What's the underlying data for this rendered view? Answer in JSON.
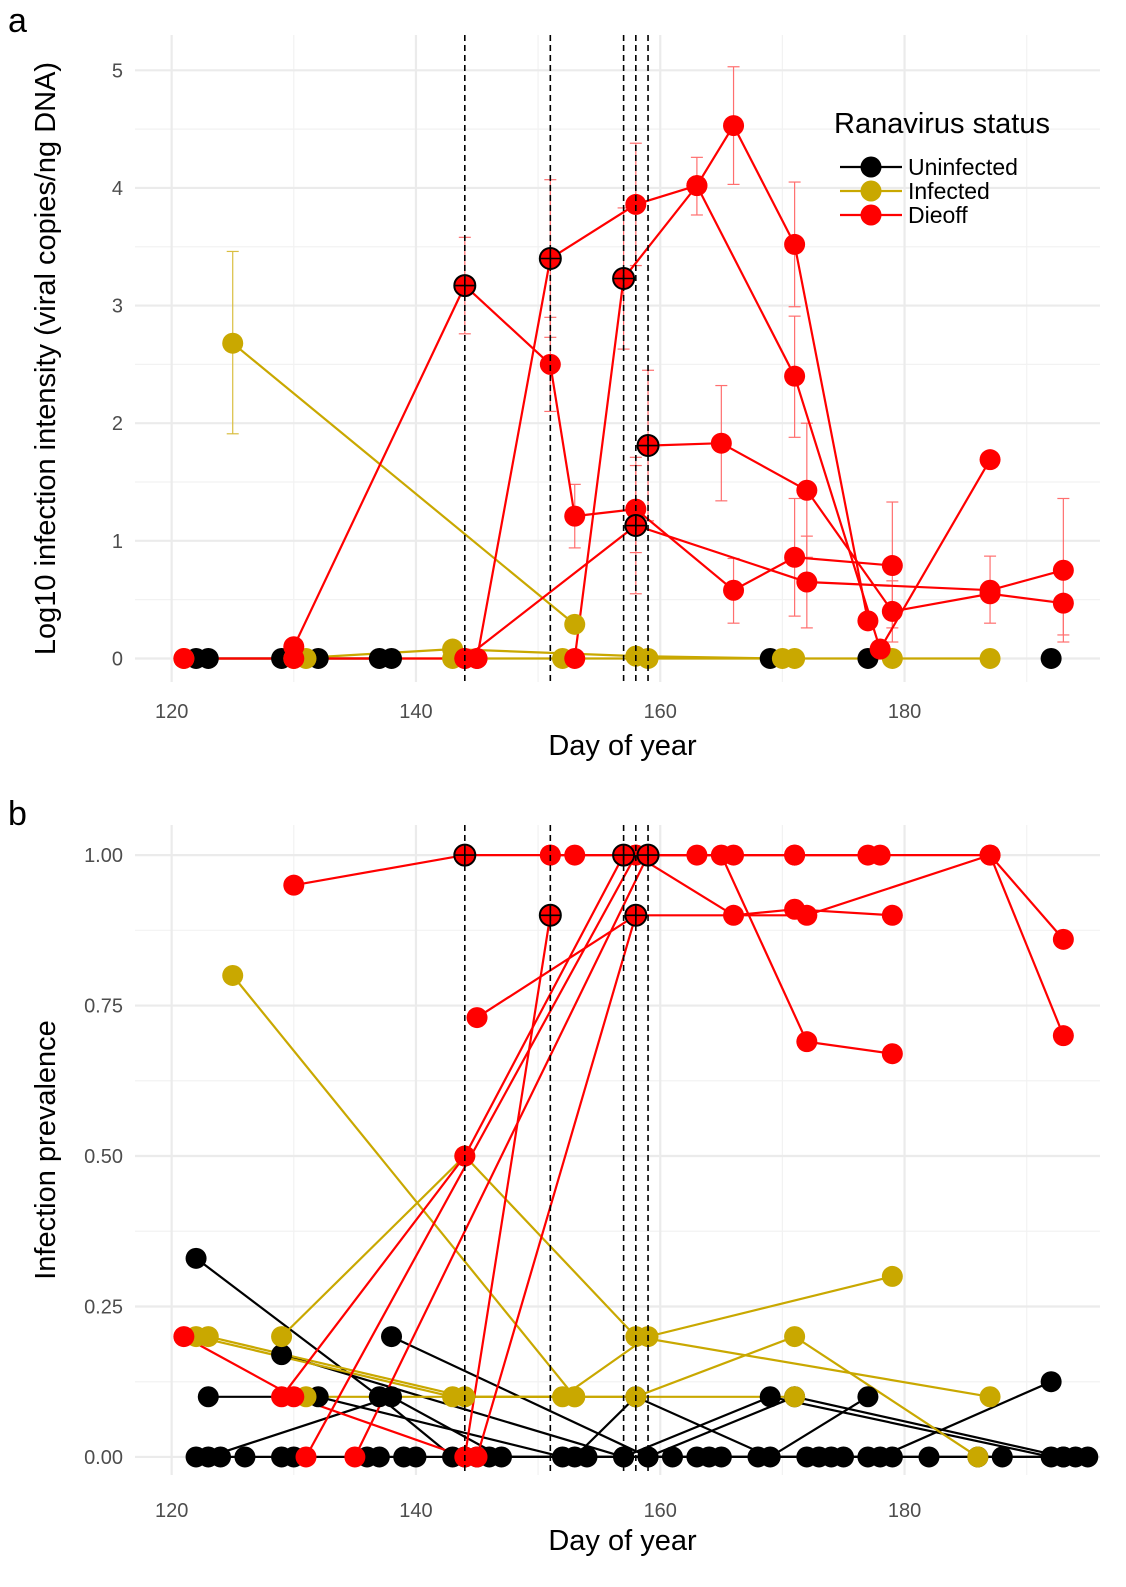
{
  "colors": {
    "uninfected": "#000000",
    "infected": "#c9a800",
    "dieoff": "#ff0000",
    "grid": "#ebebeb",
    "errorbar": "#ff6f6f"
  },
  "legend": {
    "title": "Ranavirus status",
    "items": [
      {
        "label": "Uninfected",
        "color": "#000000"
      },
      {
        "label": "Infected",
        "color": "#c9a800"
      },
      {
        "label": "Dieoff",
        "color": "#ff0000"
      }
    ]
  },
  "chart_data": [
    {
      "panel": "a",
      "type": "line",
      "xlabel": "Day of year",
      "ylabel": "Log10 infection intensity (viral copies/ng DNA)",
      "xlim": [
        117,
        196
      ],
      "ylim": [
        -0.2,
        5.3
      ],
      "xticks": [
        120,
        140,
        160,
        180
      ],
      "yticks": [
        0,
        1,
        2,
        3,
        4,
        5
      ],
      "ytick_labels": [
        "0",
        "1",
        "2",
        "3",
        "4",
        "5"
      ],
      "dieoff_days": [
        144,
        151,
        157,
        158,
        159
      ],
      "series": [
        {
          "status": "dieoff",
          "points": [
            [
              130,
              0.1
            ],
            [
              144,
              3.17
            ],
            [
              151,
              2.5
            ],
            [
              153,
              1.21
            ],
            [
              158,
              1.27
            ],
            [
              166,
              0.58
            ],
            [
              171,
              0.86
            ],
            [
              179,
              0.79
            ]
          ]
        },
        {
          "status": "dieoff",
          "points": [
            [
              145,
              0
            ],
            [
              151,
              3.4
            ],
            [
              158,
              3.86
            ],
            [
              163,
              4.02
            ],
            [
              166,
              4.53
            ],
            [
              171,
              3.52
            ],
            [
              177,
              0.32
            ]
          ]
        },
        {
          "status": "dieoff",
          "points": [
            [
              153,
              0
            ],
            [
              157,
              3.23
            ],
            [
              163,
              4.02
            ],
            [
              171,
              2.4
            ],
            [
              178,
              0.08
            ],
            [
              187,
              1.69
            ]
          ]
        },
        {
          "status": "dieoff",
          "points": [
            [
              159,
              1.81
            ],
            [
              165,
              1.83
            ],
            [
              172,
              1.43
            ],
            [
              179,
              0.4
            ],
            [
              187,
              0.55
            ],
            [
              193,
              0.47
            ]
          ]
        },
        {
          "status": "dieoff",
          "points": [
            [
              144,
              0
            ],
            [
              158,
              1.13
            ],
            [
              172,
              0.65
            ],
            [
              187,
              0.58
            ],
            [
              193,
              0.75
            ]
          ]
        },
        {
          "status": "dieoff",
          "points": [
            [
              121,
              0
            ],
            [
              130,
              0
            ],
            [
              144,
              0
            ],
            [
              145,
              0
            ]
          ]
        },
        {
          "status": "infected",
          "points": [
            [
              125,
              2.68
            ],
            [
              153,
              0.29
            ]
          ]
        },
        {
          "status": "infected",
          "points": [
            [
              121,
              0
            ],
            [
              130,
              0
            ],
            [
              143,
              0.08
            ],
            [
              158,
              0.02
            ],
            [
              170,
              0
            ],
            [
              179,
              0
            ],
            [
              187,
              0
            ]
          ]
        },
        {
          "status": "infected",
          "points": [
            [
              131,
              0
            ],
            [
              143,
              0
            ],
            [
              152,
              0
            ],
            [
              159,
              0
            ],
            [
              171,
              0
            ]
          ]
        },
        {
          "status": "uninfected",
          "points": [
            [
              122,
              0
            ],
            [
              123,
              0
            ],
            [
              129,
              0
            ],
            [
              132,
              0
            ],
            [
              137,
              0
            ],
            [
              138,
              0
            ]
          ]
        },
        {
          "status": "uninfected",
          "points": [
            [
              169,
              0
            ]
          ]
        },
        {
          "status": "uninfected",
          "points": [
            [
              177,
              0
            ]
          ]
        },
        {
          "status": "uninfected",
          "points": [
            [
              192,
              0
            ]
          ]
        }
      ],
      "error_bars": [
        {
          "x": 125,
          "lo": 1.91,
          "hi": 3.46,
          "status": "infected"
        },
        {
          "x": 144,
          "lo": 2.76,
          "hi": 3.58
        },
        {
          "x": 151,
          "lo": 2.73,
          "hi": 4.07
        },
        {
          "x": 151,
          "lo": 2.1,
          "hi": 2.9
        },
        {
          "x": 153,
          "lo": 0.94,
          "hi": 1.48
        },
        {
          "x": 157,
          "lo": 2.63,
          "hi": 3.83
        },
        {
          "x": 158,
          "lo": 3.34,
          "hi": 4.38
        },
        {
          "x": 158,
          "lo": 0.9,
          "hi": 1.64
        },
        {
          "x": 158,
          "lo": 0.55,
          "hi": 1.71
        },
        {
          "x": 159,
          "lo": 1.17,
          "hi": 2.45
        },
        {
          "x": 163,
          "lo": 3.77,
          "hi": 4.26
        },
        {
          "x": 165,
          "lo": 1.34,
          "hi": 2.32
        },
        {
          "x": 166,
          "lo": 4.03,
          "hi": 5.03
        },
        {
          "x": 166,
          "lo": 0.3,
          "hi": 0.85
        },
        {
          "x": 171,
          "lo": 2.99,
          "hi": 4.05
        },
        {
          "x": 171,
          "lo": 1.88,
          "hi": 2.91
        },
        {
          "x": 171,
          "lo": 0.36,
          "hi": 1.36
        },
        {
          "x": 172,
          "lo": 0.86,
          "hi": 2.0
        },
        {
          "x": 172,
          "lo": 0.26,
          "hi": 1.04
        },
        {
          "x": 179,
          "lo": 0.26,
          "hi": 1.33
        },
        {
          "x": 179,
          "lo": 0.14,
          "hi": 0.66
        },
        {
          "x": 187,
          "lo": 0.3,
          "hi": 0.87
        },
        {
          "x": 193,
          "lo": 0.14,
          "hi": 1.36
        },
        {
          "x": 193,
          "lo": 0.2,
          "hi": 0.74
        }
      ],
      "crosshair_points": [
        [
          144,
          3.17
        ],
        [
          151,
          3.4
        ],
        [
          157,
          3.23
        ],
        [
          158,
          1.13
        ],
        [
          159,
          1.81
        ]
      ],
      "tick_label_precision": 0
    },
    {
      "panel": "b",
      "type": "line",
      "xlabel": "Day of year",
      "ylabel": "Infection prevalence",
      "xlim": [
        117,
        196
      ],
      "ylim": [
        -0.03,
        1.05
      ],
      "xticks": [
        120,
        140,
        160,
        180
      ],
      "yticks": [
        0,
        0.25,
        0.5,
        0.75,
        1.0
      ],
      "ytick_labels": [
        "0.00",
        "0.25",
        "0.50",
        "0.75",
        "1.00"
      ],
      "dieoff_days": [
        144,
        151,
        157,
        158,
        159
      ],
      "series": [
        {
          "status": "dieoff",
          "points": [
            [
              130,
              0.95
            ],
            [
              144,
              1.0
            ],
            [
              151,
              1.0
            ],
            [
              153,
              1.0
            ],
            [
              158,
              1.0
            ],
            [
              166,
              0.9
            ],
            [
              171,
              0.91
            ],
            [
              179,
              0.9
            ]
          ]
        },
        {
          "status": "dieoff",
          "points": [
            [
              145,
              0.73
            ],
            [
              158,
              0.9
            ],
            [
              172,
              0.9
            ],
            [
              187,
              1.0
            ],
            [
              193,
              0.86
            ]
          ]
        },
        {
          "status": "dieoff",
          "points": [
            [
              159,
              1.0
            ],
            [
              163,
              1.0
            ],
            [
              165,
              1.0
            ],
            [
              172,
              0.69
            ],
            [
              179,
              0.67
            ]
          ]
        },
        {
          "status": "dieoff",
          "points": [
            [
              157,
              1.0
            ],
            [
              166,
              1.0
            ],
            [
              171,
              1.0
            ],
            [
              177,
              1.0
            ],
            [
              178,
              1.0
            ]
          ]
        },
        {
          "status": "dieoff",
          "points": [
            [
              151,
              1.0
            ],
            [
              171,
              1.0
            ],
            [
              187,
              1.0
            ],
            [
              193,
              0.7
            ]
          ]
        },
        {
          "status": "dieoff",
          "points": [
            [
              121,
              0.2
            ],
            [
              130,
              0.1
            ],
            [
              144,
              0.0
            ],
            [
              151,
              0.9
            ]
          ]
        },
        {
          "status": "dieoff",
          "points": [
            [
              129,
              0.1
            ],
            [
              144,
              0.5
            ],
            [
              157,
              1.0
            ]
          ]
        },
        {
          "status": "dieoff",
          "points": [
            [
              135,
              0.0
            ],
            [
              159,
              1.0
            ]
          ]
        },
        {
          "status": "dieoff",
          "points": [
            [
              131,
              0.0
            ],
            [
              158,
              1.0
            ]
          ]
        },
        {
          "status": "dieoff",
          "points": [
            [
              145,
              0.0
            ],
            [
              158,
              0.9
            ]
          ]
        },
        {
          "status": "infected",
          "points": [
            [
              125,
              0.8
            ],
            [
              153,
              0.1
            ]
          ]
        },
        {
          "status": "infected",
          "points": [
            [
              129,
              0.2
            ],
            [
              144,
              0.5
            ],
            [
              158,
              0.2
            ],
            [
              187,
              0.1
            ]
          ]
        },
        {
          "status": "infected",
          "points": [
            [
              122,
              0.2
            ],
            [
              143,
              0.1
            ],
            [
              152,
              0.1
            ],
            [
              159,
              0.2
            ],
            [
              179,
              0.3
            ]
          ]
        },
        {
          "status": "infected",
          "points": [
            [
              123,
              0.2
            ],
            [
              144,
              0.1
            ],
            [
              158,
              0.1
            ],
            [
              171,
              0.2
            ],
            [
              186,
              0.0
            ]
          ]
        },
        {
          "status": "infected",
          "points": [
            [
              131,
              0.1
            ],
            [
              153,
              0.1
            ],
            [
              171,
              0.1
            ]
          ]
        },
        {
          "status": "uninfected",
          "points": [
            [
              122,
              0.33
            ],
            [
              137,
              0.1
            ],
            [
              143,
              0.0
            ],
            [
              153,
              0.0
            ],
            [
              158,
              0.1
            ],
            [
              169,
              0.0
            ],
            [
              177,
              0.1
            ]
          ]
        },
        {
          "status": "uninfected",
          "points": [
            [
              129,
              0.17
            ],
            [
              157,
              0.0
            ],
            [
              169,
              0.1
            ],
            [
              192,
              0.0
            ]
          ]
        },
        {
          "status": "uninfected",
          "points": [
            [
              138,
              0.2
            ],
            [
              159,
              0.0
            ],
            [
              171,
              0.1
            ],
            [
              193,
              0.0
            ]
          ]
        },
        {
          "status": "uninfected",
          "points": [
            [
              123,
              0.1
            ],
            [
              132,
              0.1
            ],
            [
              152,
              0.0
            ],
            [
              164,
              0.0
            ],
            [
              178,
              0.0
            ],
            [
              192,
              0.125
            ]
          ]
        },
        {
          "status": "uninfected",
          "points": [
            [
              123,
              0.0
            ],
            [
              138,
              0.1
            ],
            [
              147,
              0.0
            ],
            [
              163,
              0.0
            ],
            [
              172,
              0.0
            ],
            [
              194,
              0.0
            ]
          ]
        },
        {
          "status": "uninfected",
          "points": [
            [
              122,
              0.0
            ],
            [
              124,
              0.0
            ],
            [
              126,
              0.0
            ],
            [
              129,
              0.0
            ],
            [
              130,
              0.0
            ],
            [
              136,
              0.0
            ],
            [
              137,
              0.0
            ],
            [
              139,
              0.0
            ],
            [
              140,
              0.0
            ],
            [
              144,
              0.0
            ],
            [
              145,
              0.0
            ],
            [
              146,
              0.0
            ],
            [
              154,
              0.0
            ],
            [
              157,
              0.0
            ],
            [
              159,
              0.0
            ],
            [
              161,
              0.0
            ],
            [
              165,
              0.0
            ],
            [
              168,
              0.0
            ],
            [
              173,
              0.0
            ],
            [
              174,
              0.0
            ],
            [
              175,
              0.0
            ],
            [
              177,
              0.0
            ],
            [
              179,
              0.0
            ],
            [
              182,
              0.0
            ],
            [
              186,
              0.0
            ],
            [
              188,
              0.0
            ],
            [
              193,
              0.0
            ],
            [
              195,
              0.0
            ]
          ]
        }
      ],
      "error_bars": [],
      "crosshair_points": [
        [
          144,
          1.0
        ],
        [
          151,
          0.9
        ],
        [
          157,
          1.0
        ],
        [
          158,
          0.9
        ],
        [
          159,
          1.0
        ]
      ],
      "tick_label_precision": 2
    }
  ],
  "panel_labels": [
    "a",
    "b"
  ]
}
